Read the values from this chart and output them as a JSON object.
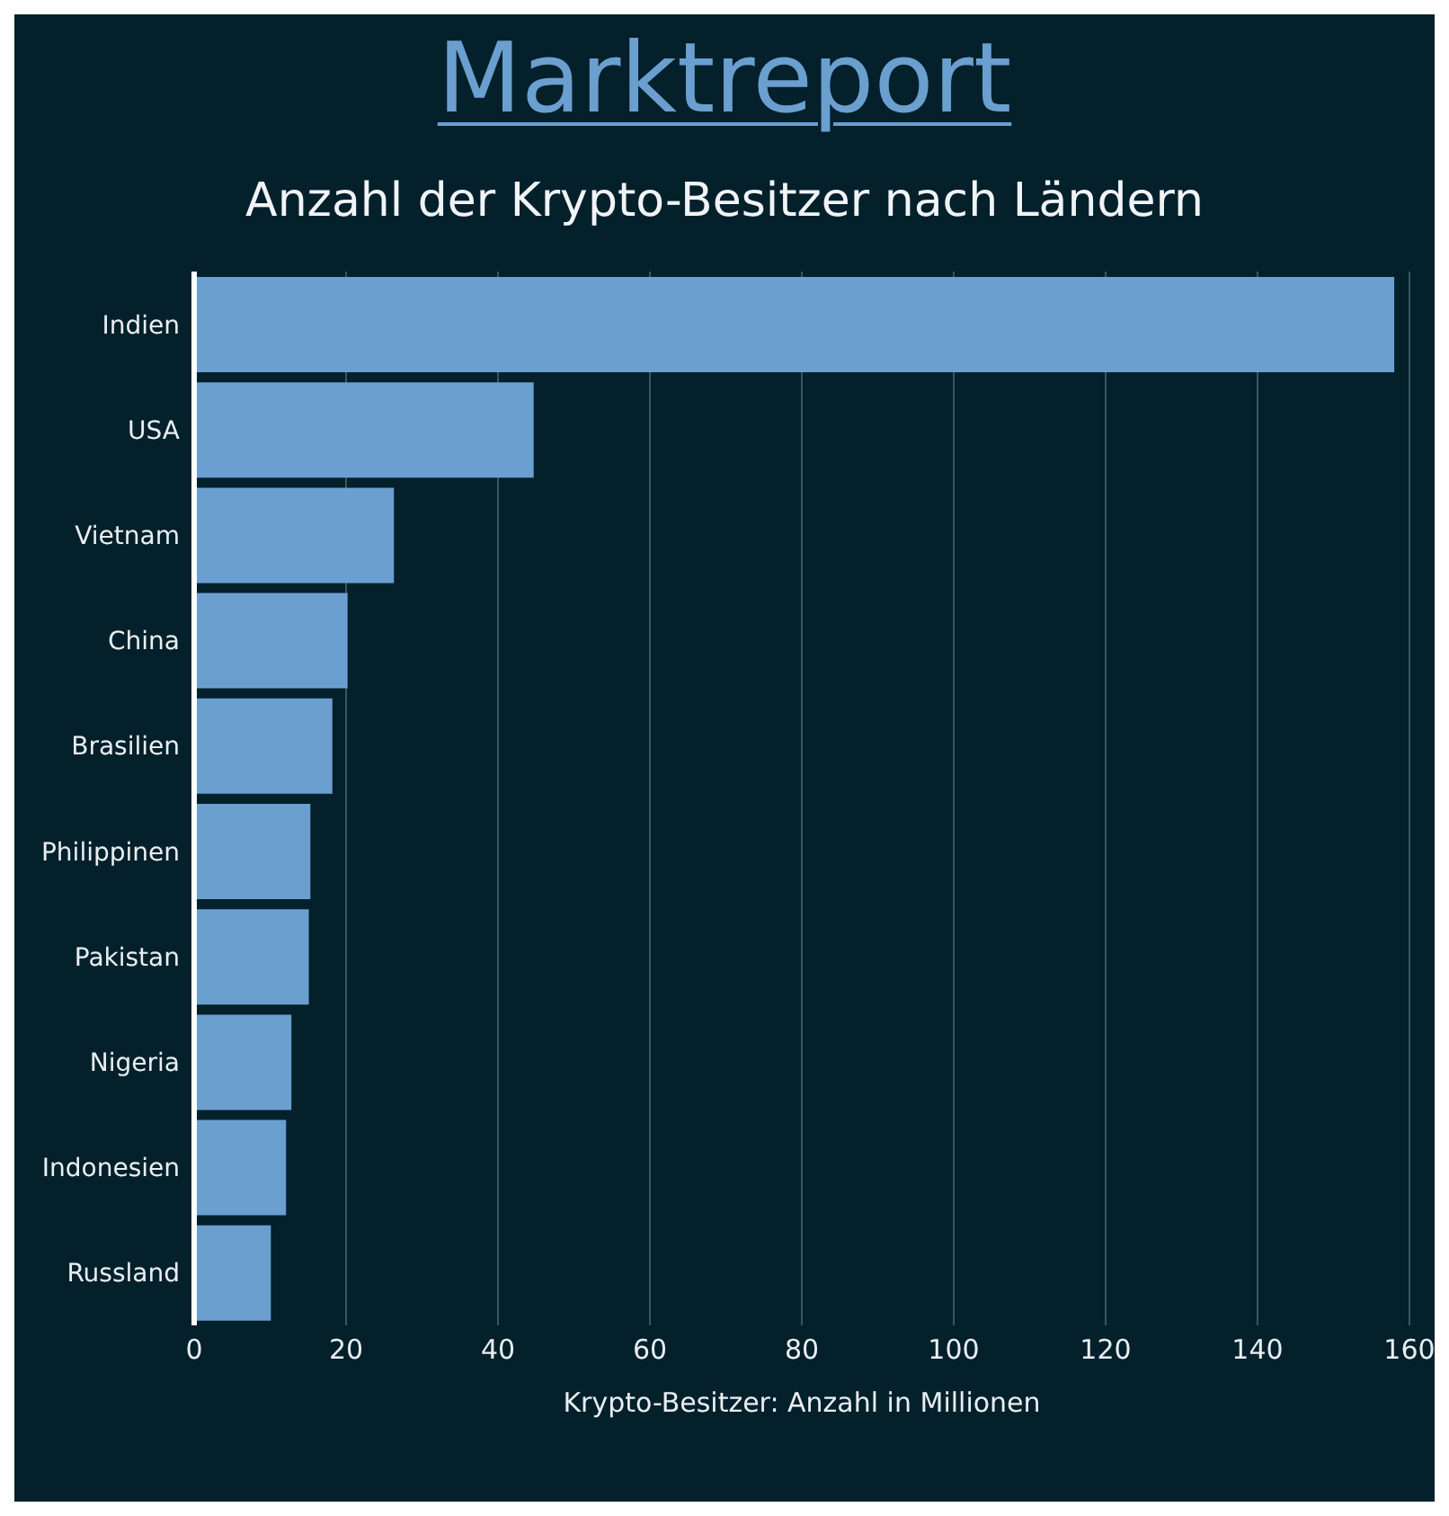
{
  "chart_data": {
    "type": "bar",
    "title": "Marktreport",
    "subtitle": "Anzahl der Krypto-Besitzer nach Ländern",
    "xlabel": "Krypto-Besitzer: Anzahl in Millionen",
    "categories": [
      "Indien",
      "USA",
      "Vietnam",
      "China",
      "Brasilien",
      "Philippinen",
      "Pakistan",
      "Nigeria",
      "Indonesien",
      "Russland"
    ],
    "values": [
      158,
      44.7,
      26.3,
      20.2,
      18.2,
      15.3,
      15.1,
      12.8,
      12.1,
      10.1
    ],
    "color": "#6a9fd0",
    "orientation": "horizontal",
    "xlim": [
      0,
      160
    ],
    "xticks": [
      0,
      20,
      40,
      60,
      80,
      100,
      120,
      140,
      160
    ],
    "grid": "x"
  }
}
